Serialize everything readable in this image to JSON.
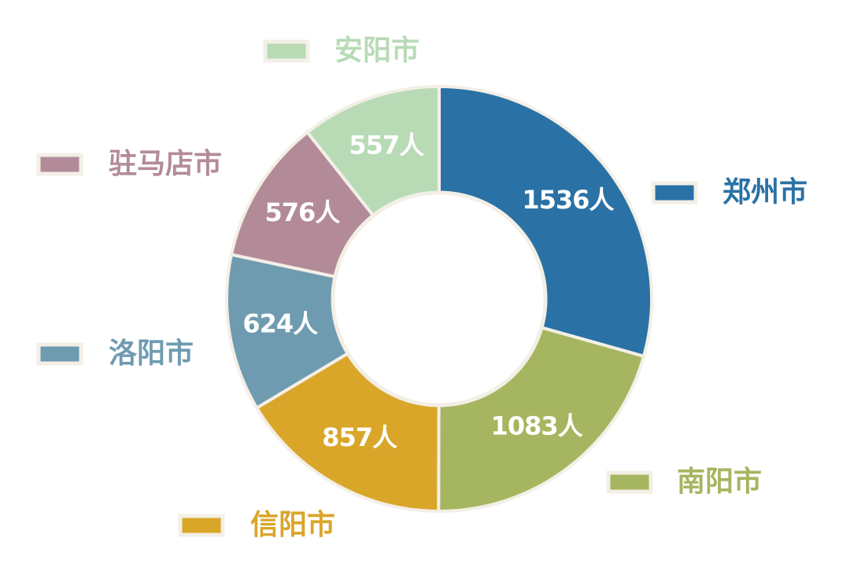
{
  "chart_data": {
    "type": "donut",
    "categories": [
      "郑州市",
      "南阳市",
      "信阳市",
      "洛阳市",
      "驻马店市",
      "安阳市"
    ],
    "values": [
      1536,
      1083,
      857,
      624,
      576,
      557
    ],
    "value_labels": [
      "1536人",
      "1083人",
      "857人",
      "624人",
      "576人",
      "557人"
    ],
    "colors": [
      "#2a72a5",
      "#a6b55f",
      "#d9a629",
      "#6f9bb0",
      "#b38b98",
      "#b8dbb6"
    ]
  }
}
